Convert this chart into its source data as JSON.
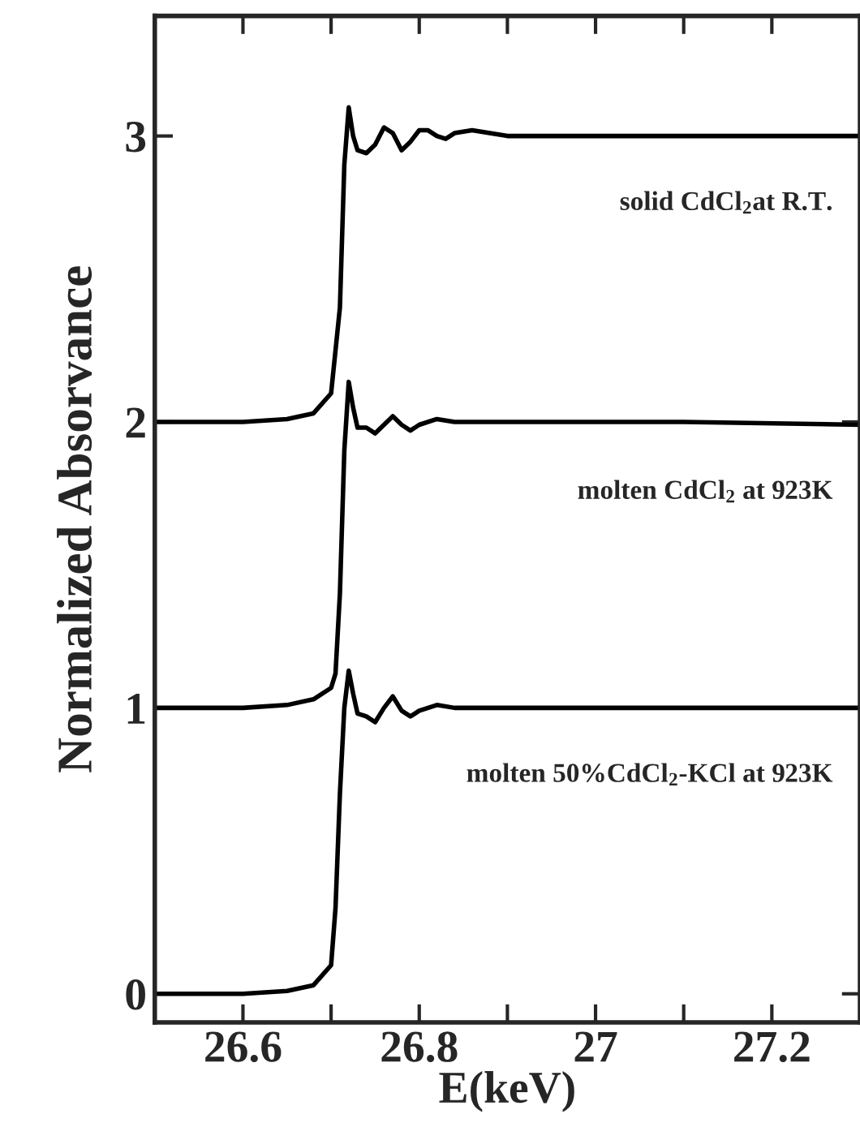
{
  "chart_data": {
    "type": "line",
    "xlabel": "E(keV)",
    "ylabel": "Normalized Absorvance",
    "xlim": [
      26.5,
      27.3
    ],
    "xticks": [
      26.6,
      {
        "value": 26.7,
        "label": null
      },
      26.8,
      {
        "value": 26.9,
        "label": null
      },
      27,
      {
        "value": 27.1,
        "label": null
      },
      27.2
    ],
    "ylim": [
      -0.1,
      3.42
    ],
    "yticks": [
      0,
      1,
      2,
      3
    ],
    "grid": false,
    "legend": false,
    "marker": "none",
    "line_style": "solid",
    "series": [
      {
        "name": "solid CdCl$_{2}$at R.T.",
        "color": "#000000",
        "x": [
          26.5,
          26.6,
          26.65,
          26.68,
          26.7,
          26.71,
          26.715,
          26.72,
          26.725,
          26.73,
          26.74,
          26.75,
          26.76,
          26.77,
          26.78,
          26.79,
          26.8,
          26.81,
          26.82,
          26.83,
          26.84,
          26.86,
          26.88,
          26.9,
          26.95,
          27.0,
          27.1,
          27.3
        ],
        "values": [
          2.0,
          2.0,
          2.01,
          2.03,
          2.1,
          2.4,
          2.9,
          3.1,
          3.0,
          2.95,
          2.94,
          2.97,
          3.03,
          3.01,
          2.95,
          2.98,
          3.02,
          3.02,
          3.0,
          2.99,
          3.01,
          3.02,
          3.01,
          3.0,
          3.0,
          3.0,
          3.0,
          3.0
        ]
      },
      {
        "name": "molten CdCl$_{2}$ at 923K",
        "color": "#000000",
        "x": [
          26.5,
          26.6,
          26.65,
          26.68,
          26.7,
          26.705,
          26.71,
          26.715,
          26.72,
          26.725,
          26.73,
          26.74,
          26.75,
          26.76,
          26.77,
          26.78,
          26.79,
          26.8,
          26.82,
          26.84,
          26.86,
          26.9,
          27.0,
          27.1,
          27.3
        ],
        "values": [
          1.0,
          1.0,
          1.01,
          1.03,
          1.07,
          1.12,
          1.4,
          1.9,
          2.14,
          2.05,
          1.98,
          1.98,
          1.96,
          1.99,
          2.02,
          1.99,
          1.97,
          1.99,
          2.01,
          2.0,
          2.0,
          2.0,
          2.0,
          2.0,
          1.99
        ]
      },
      {
        "name": "molten 50%CdCl$_{2}$-KCl at 923K",
        "color": "#000000",
        "x": [
          26.5,
          26.6,
          26.65,
          26.68,
          26.7,
          26.705,
          26.71,
          26.715,
          26.72,
          26.725,
          26.73,
          26.74,
          26.75,
          26.76,
          26.77,
          26.78,
          26.79,
          26.8,
          26.82,
          26.84,
          26.86,
          26.9,
          27.0,
          27.1,
          27.3
        ],
        "values": [
          0.0,
          0.0,
          0.01,
          0.03,
          0.1,
          0.3,
          0.7,
          1.0,
          1.13,
          1.05,
          0.98,
          0.97,
          0.95,
          1.0,
          1.04,
          0.99,
          0.97,
          0.99,
          1.01,
          1.0,
          1.0,
          1.0,
          1.0,
          1.0,
          1.0
        ]
      }
    ]
  }
}
